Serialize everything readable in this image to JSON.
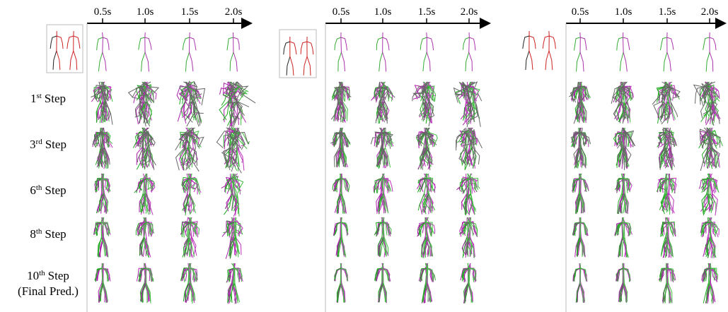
{
  "panels": [
    {
      "time_labels": [
        "0.5s",
        "1.0s",
        "1.5s",
        "2.0s"
      ]
    },
    {
      "time_labels": [
        "0.5s",
        "1.0s",
        "1.5s",
        "2.0s"
      ]
    },
    {
      "time_labels": [
        "0.5s",
        "1.0s",
        "1.5s",
        "2.0s"
      ]
    }
  ],
  "rows": [
    {
      "number": "1",
      "suffix": "st",
      "label": "Step"
    },
    {
      "number": "3",
      "suffix": "rd",
      "label": "Step"
    },
    {
      "number": "6",
      "suffix": "th",
      "label": "Step"
    },
    {
      "number": "8",
      "suffix": "th",
      "label": "Step"
    },
    {
      "number": "10",
      "suffix": "th",
      "label": "Step",
      "note": "(Final Pred.)"
    }
  ]
}
